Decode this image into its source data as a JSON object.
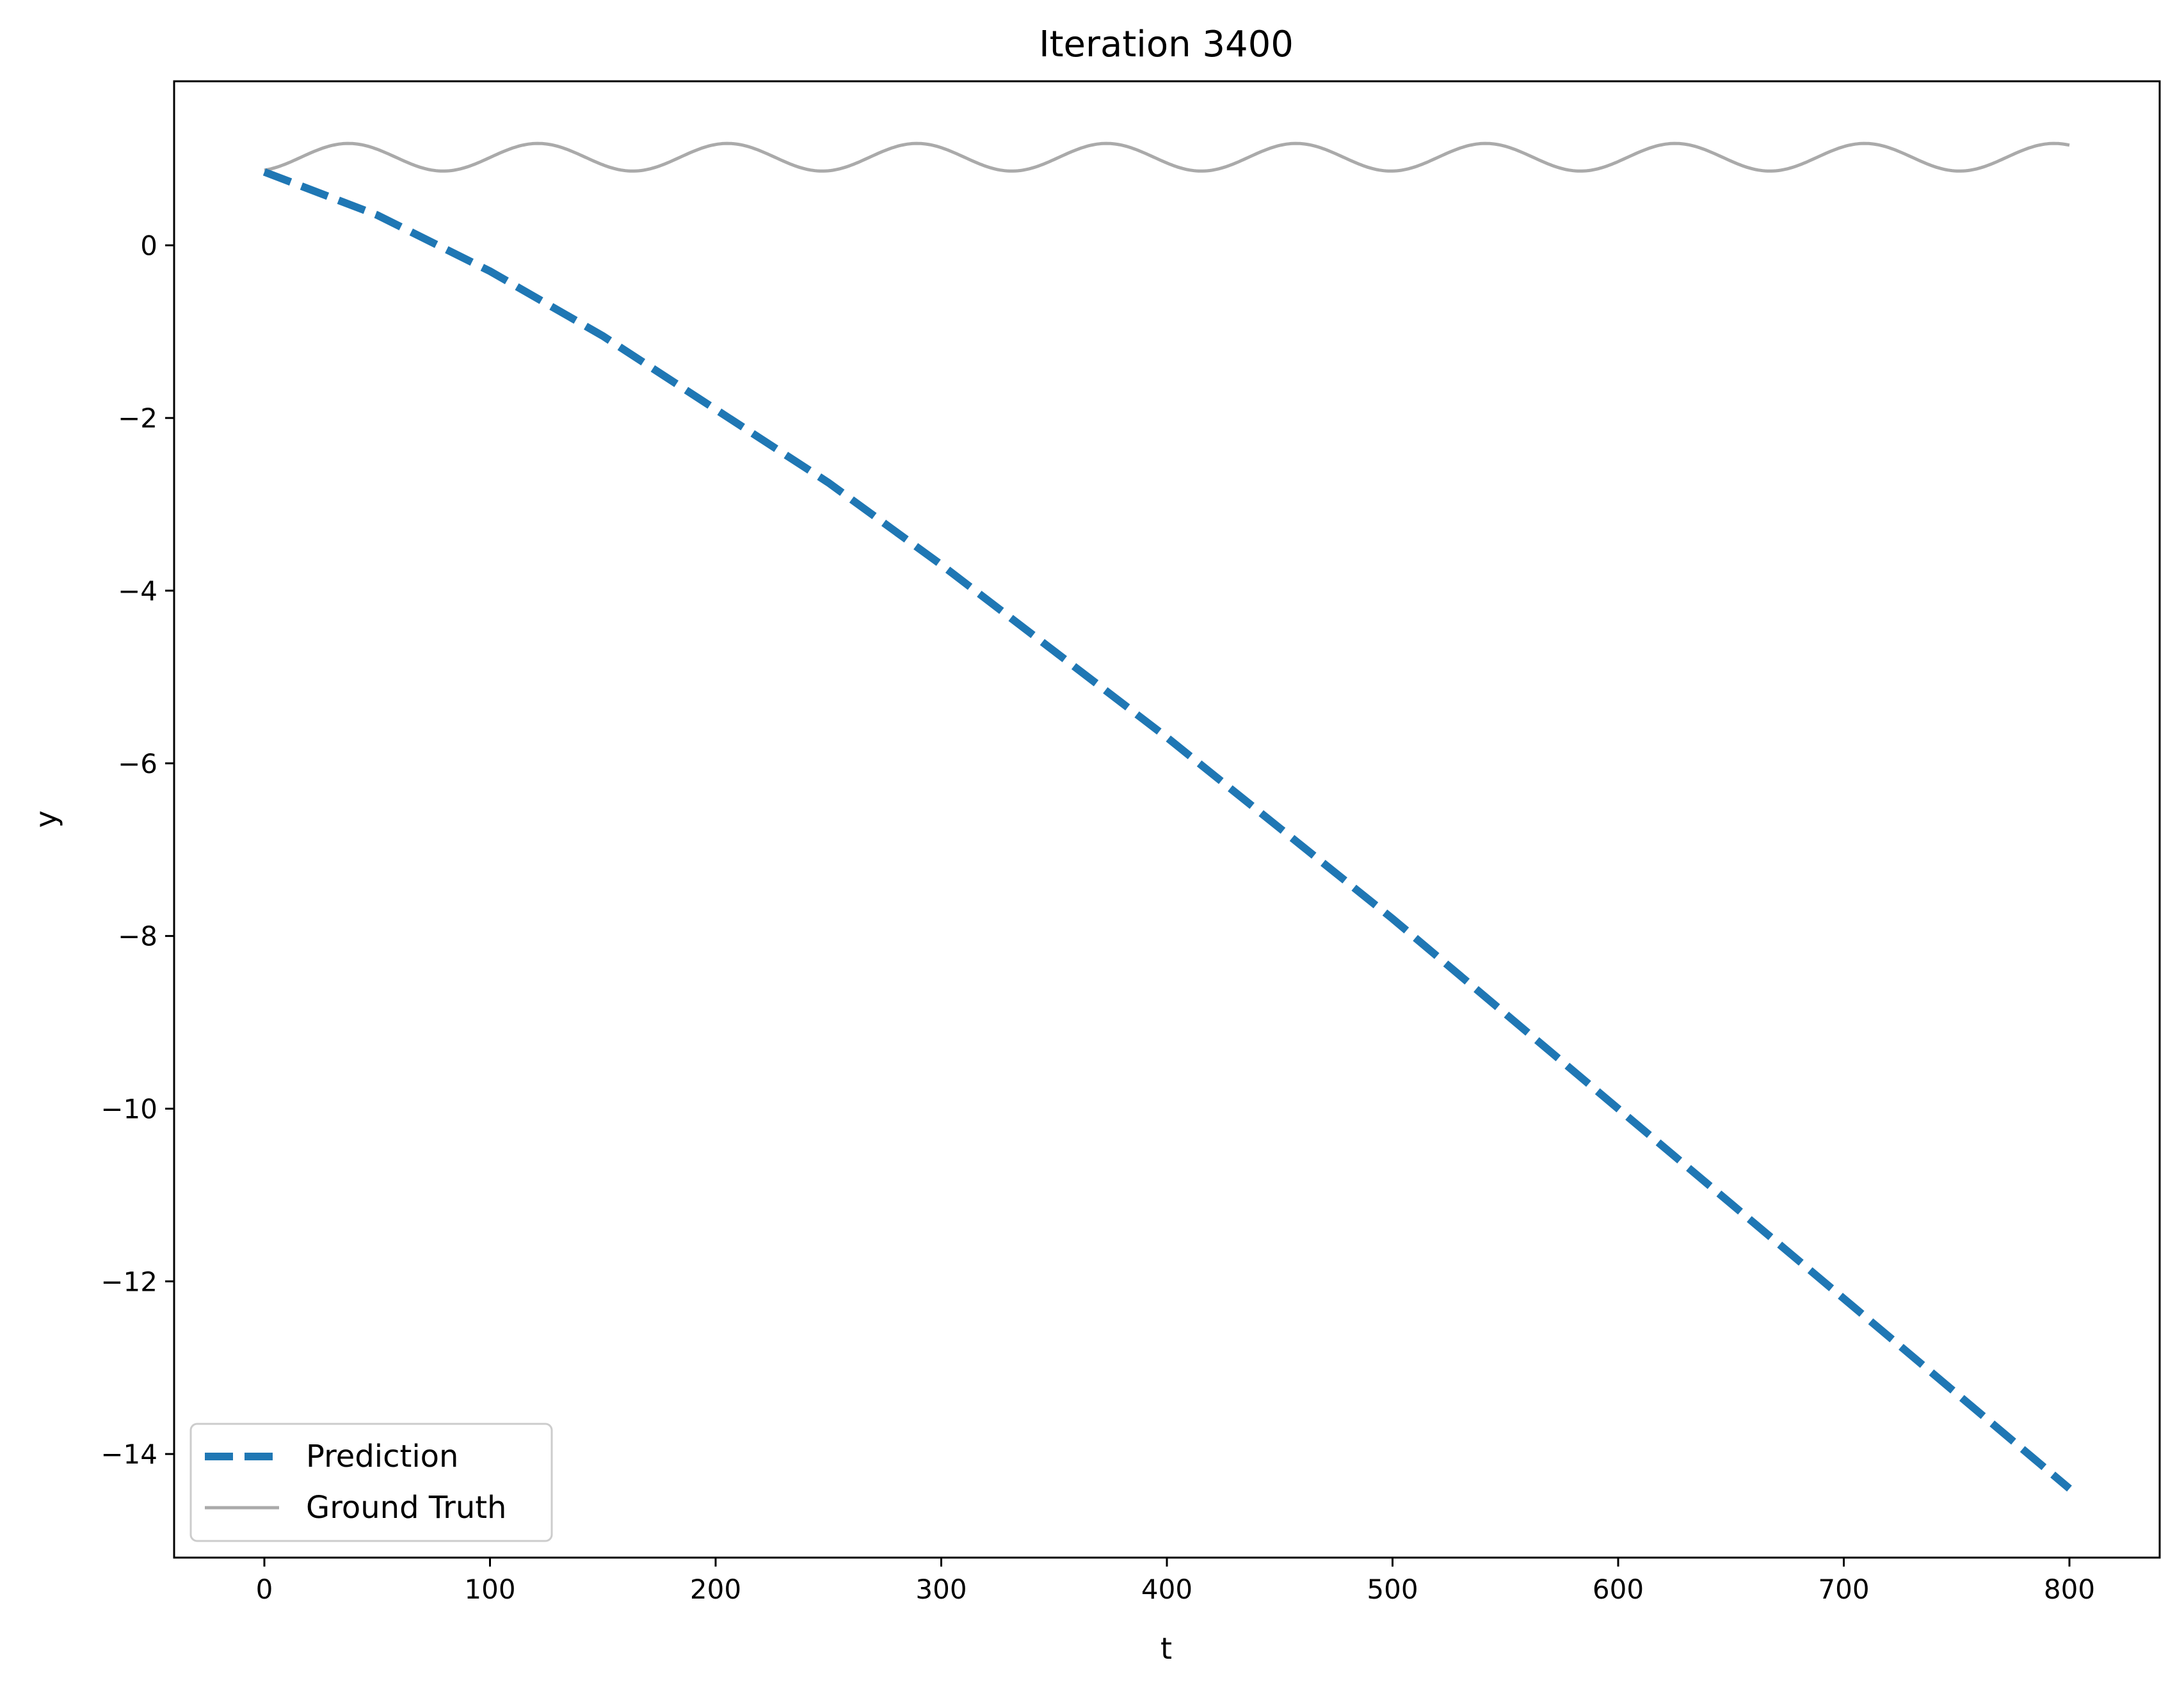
{
  "chart_data": {
    "type": "line",
    "title": "Iteration 3400",
    "xlabel": "t",
    "ylabel": "y",
    "xlim": [
      -40,
      840
    ],
    "ylim": [
      -15.2,
      1.9
    ],
    "xticks": [
      0,
      100,
      200,
      300,
      400,
      500,
      600,
      700,
      800
    ],
    "yticks": [
      0,
      -2,
      -4,
      -6,
      -8,
      -10,
      -12,
      -14
    ],
    "legend_position": "lower-left",
    "grid": false,
    "series": [
      {
        "name": "Prediction",
        "color": "#1f77b4",
        "style": "dashed",
        "x": [
          0,
          50,
          100,
          150,
          200,
          250,
          300,
          350,
          400,
          450,
          500,
          550,
          600,
          650,
          700,
          750,
          800
        ],
        "y": [
          0.85,
          0.35,
          -0.3,
          -1.05,
          -1.9,
          -2.75,
          -3.7,
          -4.7,
          -5.7,
          -6.75,
          -7.8,
          -8.9,
          -10.0,
          -11.1,
          -12.2,
          -13.3,
          -14.4
        ]
      },
      {
        "name": "Ground Truth",
        "color": "#aaaaaa",
        "style": "solid",
        "function": "sine",
        "x_range": [
          0,
          800
        ],
        "center": 1.02,
        "amplitude": 0.16,
        "period": 84,
        "y_at_start": 0.87
      }
    ]
  }
}
